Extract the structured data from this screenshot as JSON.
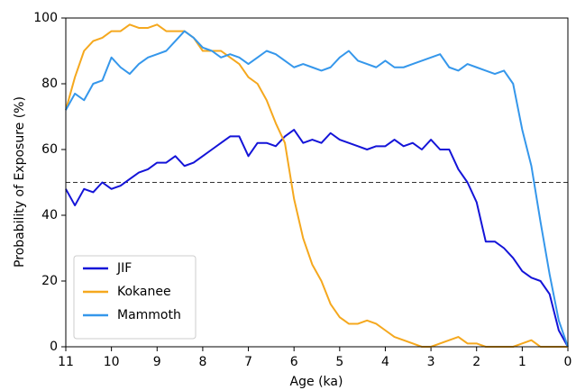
{
  "chart_data": {
    "type": "line",
    "xlabel": "Age (ka)",
    "ylabel": "Probability of Exposure (%)",
    "x": [
      11,
      10.8,
      10.6,
      10.4,
      10.2,
      10,
      9.8,
      9.6,
      9.4,
      9.2,
      9,
      8.8,
      8.6,
      8.4,
      8.2,
      8,
      7.8,
      7.6,
      7.4,
      7.2,
      7,
      6.8,
      6.6,
      6.4,
      6.2,
      6,
      5.8,
      5.6,
      5.4,
      5.2,
      5,
      4.8,
      4.6,
      4.4,
      4.2,
      4,
      3.8,
      3.6,
      3.4,
      3.2,
      3,
      2.8,
      2.6,
      2.4,
      2.2,
      2,
      1.8,
      1.6,
      1.4,
      1.2,
      1,
      0.8,
      0.6,
      0.4,
      0.2,
      0
    ],
    "series": [
      {
        "name": "JIF",
        "color": "#1414d8",
        "values": [
          48,
          43,
          48,
          47,
          50,
          48,
          49,
          51,
          53,
          54,
          56,
          56,
          58,
          55,
          56,
          58,
          60,
          62,
          64,
          64,
          58,
          62,
          62,
          61,
          64,
          66,
          62,
          63,
          62,
          65,
          63,
          62,
          61,
          60,
          61,
          61,
          63,
          61,
          62,
          60,
          63,
          60,
          60,
          54,
          50,
          44,
          32,
          32,
          30,
          27,
          23,
          21,
          20,
          16,
          5,
          0
        ]
      },
      {
        "name": "Kokanee",
        "color": "#f5a81e",
        "values": [
          72,
          82,
          90,
          93,
          94,
          96,
          96,
          98,
          97,
          97,
          98,
          96,
          96,
          96,
          94,
          90,
          90,
          90,
          88,
          86,
          82,
          80,
          75,
          68,
          62,
          45,
          33,
          25,
          20,
          13,
          9,
          7,
          7,
          8,
          7,
          5,
          3,
          2,
          1,
          0,
          0,
          1,
          2,
          3,
          1,
          1,
          0,
          0,
          0,
          0,
          1,
          2,
          0,
          0,
          0,
          0
        ]
      },
      {
        "name": "Mammoth",
        "color": "#3597eb",
        "values": [
          72,
          77,
          75,
          80,
          81,
          88,
          85,
          83,
          86,
          88,
          89,
          90,
          93,
          96,
          94,
          91,
          90,
          88,
          89,
          88,
          86,
          88,
          90,
          89,
          87,
          85,
          86,
          85,
          84,
          85,
          88,
          90,
          87,
          86,
          85,
          87,
          85,
          85,
          86,
          87,
          88,
          89,
          85,
          84,
          86,
          85,
          84,
          83,
          84,
          80,
          66,
          55,
          38,
          22,
          8,
          0
        ]
      }
    ],
    "hline": 50,
    "xlim": [
      11,
      0
    ],
    "xticks": [
      11,
      10,
      9,
      8,
      7,
      6,
      5,
      4,
      3,
      2,
      1,
      0
    ],
    "ylim": [
      0,
      100
    ],
    "yticks": [
      0,
      20,
      40,
      60,
      80,
      100
    ],
    "legend": "lower left"
  }
}
